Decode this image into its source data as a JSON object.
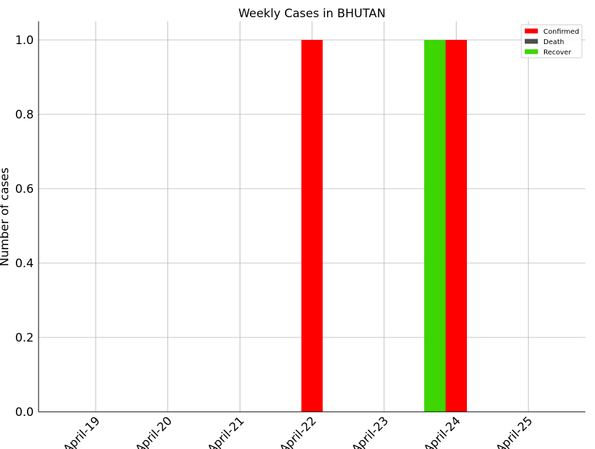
{
  "chart_data": {
    "type": "bar",
    "title": "Weekly Cases in BHUTAN",
    "xlabel": "",
    "ylabel": "Number of cases",
    "categories": [
      "April-19",
      "April-20",
      "April-21",
      "April-22",
      "April-23",
      "April-24",
      "April-25"
    ],
    "series": [
      {
        "name": "Confirmed",
        "color": "#ff0000",
        "values": [
          0,
          0,
          0,
          1,
          0,
          1,
          0
        ]
      },
      {
        "name": "Death",
        "color": "#4d4d4d",
        "values": [
          0,
          0,
          0,
          0,
          0,
          0,
          0
        ]
      },
      {
        "name": "Recover",
        "color": "#3dd600",
        "values": [
          0,
          0,
          0,
          0,
          0,
          1,
          0
        ]
      }
    ],
    "ylim": [
      0,
      1.05
    ],
    "yticks": [
      "0.0",
      "0.2",
      "0.4",
      "0.6",
      "0.8",
      "1.0"
    ],
    "grid": true,
    "legend_position": "top-right"
  }
}
